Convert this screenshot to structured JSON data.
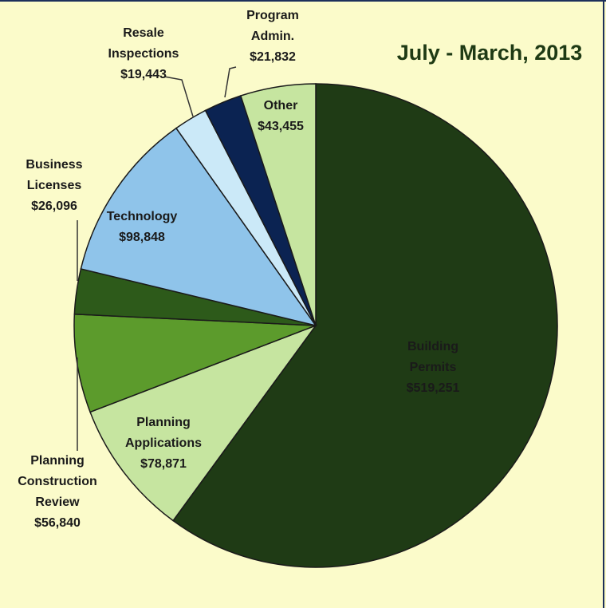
{
  "chart_data": {
    "type": "pie",
    "title": "July - March, 2013",
    "categories": [
      "Building Permits",
      "Planning Applications",
      "Planning Construction Review",
      "Business Licenses",
      "Technology",
      "Resale Inspections",
      "Program Admin.",
      "Other"
    ],
    "values": [
      519251,
      78871,
      56840,
      26096,
      98848,
      19443,
      21832,
      43455
    ],
    "value_labels": [
      "$519,251",
      "$78,871",
      "$56,840",
      "$26,096",
      "$98,848",
      "$19,443",
      "$21,832",
      "$43,455"
    ],
    "colors": [
      "#1f3b15",
      "#c6e5a0",
      "#5c9b2c",
      "#2d5a1a",
      "#8fc4ea",
      "#cbe9f8",
      "#0b2352",
      "#c6e5a0"
    ]
  }
}
